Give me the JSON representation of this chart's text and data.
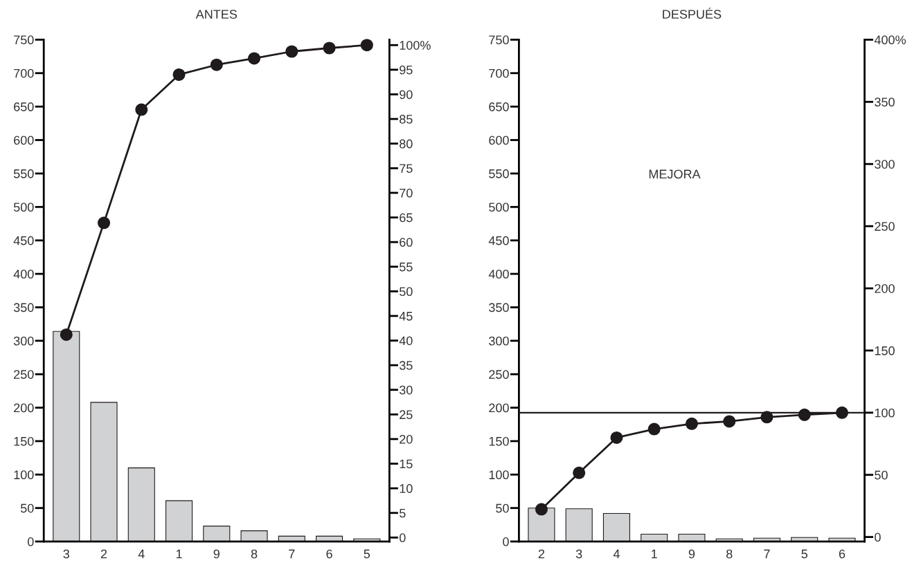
{
  "chart_data": [
    {
      "type": "bar",
      "title": "ANTES",
      "categories": [
        "3",
        "2",
        "4",
        "1",
        "9",
        "8",
        "7",
        "6",
        "5"
      ],
      "series": [
        {
          "color": "#d1d2d4",
          "values": [
            314,
            208,
            110,
            61,
            23,
            16,
            8,
            8,
            4
          ]
        },
        {
          "type": "line",
          "axis": "y2",
          "color": "#1f1a1c",
          "marker": "circle",
          "line_style": "solid",
          "values": [
            41.2,
            63.9,
            86.9,
            94.0,
            96.0,
            97.3,
            98.7,
            99.4,
            100
          ]
        }
      ],
      "ylim": [
        0,
        750
      ],
      "yticks": [
        0,
        50,
        100,
        150,
        200,
        250,
        300,
        350,
        400,
        450,
        500,
        550,
        600,
        650,
        700,
        750
      ],
      "y2lim": [
        -0.8,
        101.1
      ],
      "y2ticks": [
        0,
        5,
        10,
        15,
        20,
        25,
        30,
        35,
        40,
        45,
        50,
        55,
        60,
        65,
        70,
        75,
        80,
        85,
        90,
        95,
        {
          "value": 100,
          "label": "100%"
        }
      ],
      "grid": false,
      "legend": false
    },
    {
      "type": "bar",
      "title": "DESPUÉS",
      "categories": [
        "2",
        "3",
        "4",
        "1",
        "9",
        "8",
        "7",
        "5",
        "6"
      ],
      "series": [
        {
          "color": "#d1d2d4",
          "values": [
            50,
            49,
            42,
            11,
            11,
            4,
            5,
            6,
            5
          ]
        },
        {
          "type": "line",
          "axis": "y2",
          "color": "#1f1a1c",
          "marker": "circle",
          "line_style": "solid",
          "values": [
            22.3,
            51.6,
            79.9,
            86.8,
            91.1,
            93.0,
            96.4,
            98.3,
            100
          ]
        }
      ],
      "ylim": [
        0,
        750
      ],
      "yticks": [
        0,
        50,
        100,
        150,
        200,
        250,
        300,
        350,
        400,
        450,
        500,
        550,
        600,
        650,
        700,
        750
      ],
      "y2lim": [
        -3.6,
        400
      ],
      "y2ticks": [
        0,
        50,
        100,
        150,
        200,
        250,
        300,
        350,
        {
          "value": 400,
          "label": "400%"
        }
      ],
      "ref_lines": [
        {
          "axis": "y2",
          "value": 100,
          "color": "#1f1a1c",
          "line_style": "solid"
        }
      ],
      "annotations": [
        "MEJORA"
      ],
      "grid": false,
      "legend": false
    }
  ]
}
